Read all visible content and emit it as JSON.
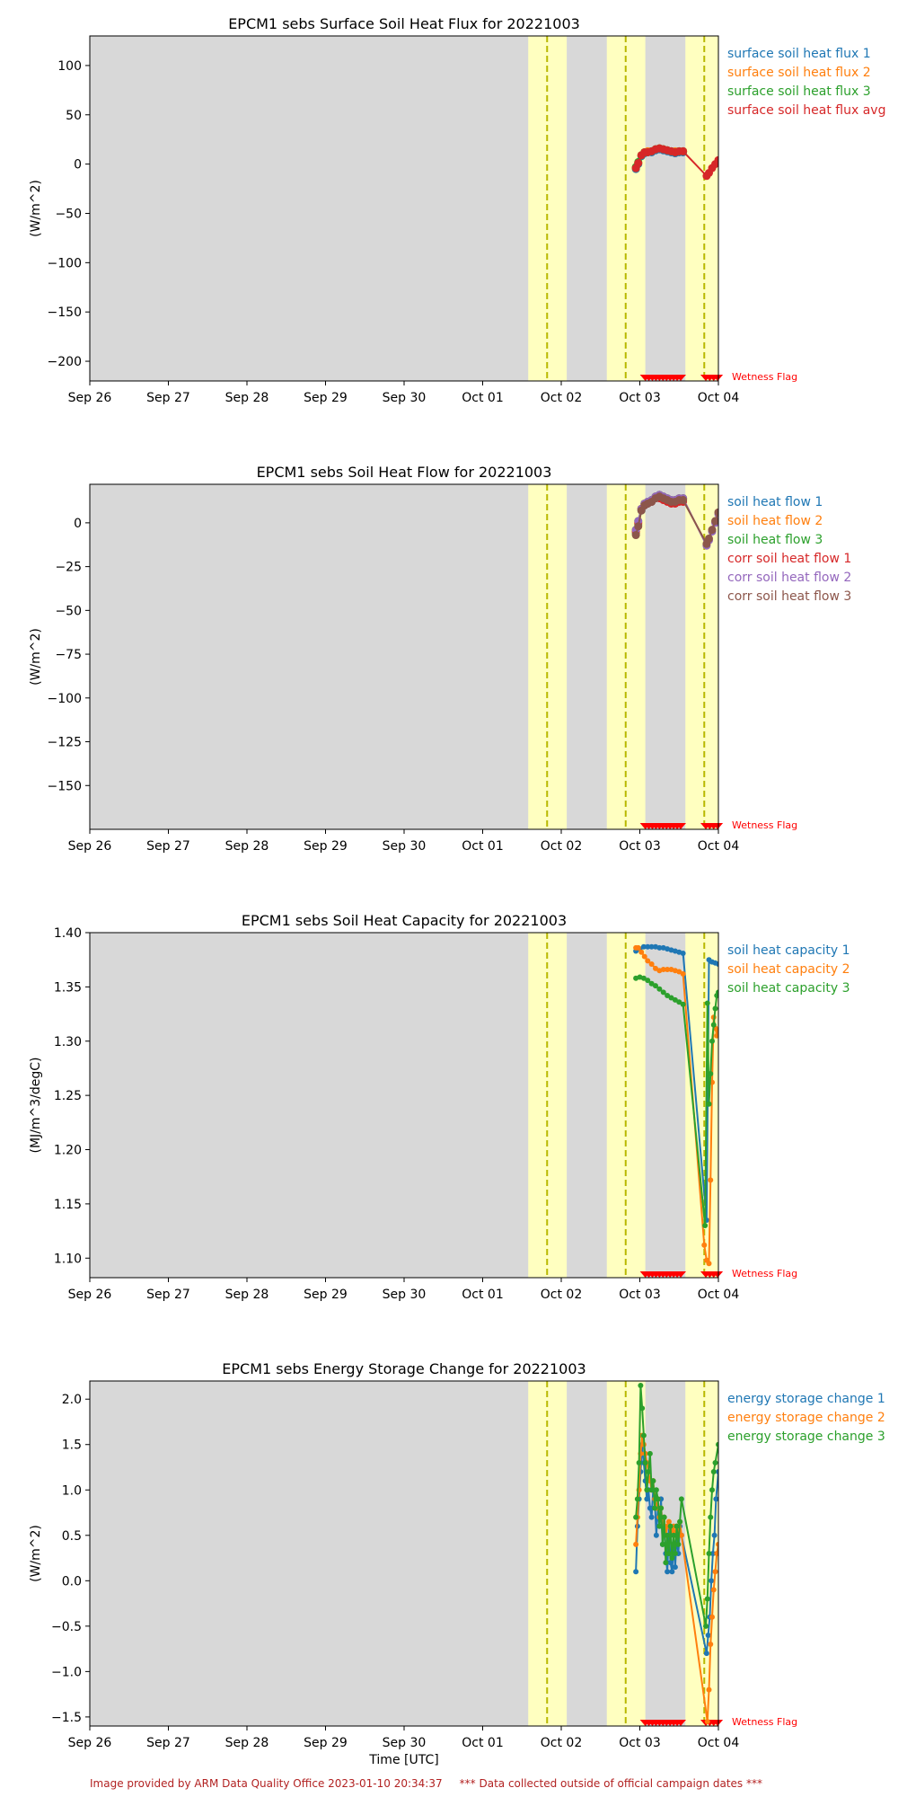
{
  "footer": "Image provided by ARM Data Quality Office 2023-01-10 20:34:37     *** Data collected outside of official campaign dates ***",
  "wetness_label": "Wetness Flag",
  "x_ticks": [
    "Sep 26",
    "Sep 27",
    "Sep 28",
    "Sep 29",
    "Sep 30",
    "Oct 01",
    "Oct 02",
    "Oct 03",
    "Oct 04"
  ],
  "x_range": [
    "2022-09-26",
    "2022-10-04"
  ],
  "colors": {
    "bg": "#d8d8d8",
    "night_band": "#ffffc0",
    "dashed": "#b8b800",
    "blue": "#1f77b4",
    "orange": "#ff7f0e",
    "green": "#2ca02c",
    "red": "#d62728",
    "purple": "#9467bd",
    "brown": "#8c564b",
    "wetness": "#ff0000"
  },
  "yellow_bands_days": [
    [
      5.58,
      6.07
    ],
    [
      6.58,
      7.07
    ],
    [
      7.58,
      8.0
    ]
  ],
  "dashed_lines_days": [
    5.82,
    6.82,
    7.82
  ],
  "chart_data": [
    {
      "type": "line",
      "title": "EPCM1 sebs Surface Soil Heat Flux for 20221003",
      "ylabel": "(W/m^2)",
      "xlabel": "",
      "ylim": [
        -220,
        130
      ],
      "yticks": [
        100,
        50,
        0,
        -50,
        -100,
        -150,
        -200
      ],
      "series": [
        {
          "name": "surface soil heat flux 1",
          "color": "blue",
          "x": [
            6.95,
            6.98,
            7.02,
            7.06,
            7.1,
            7.15,
            7.2,
            7.25,
            7.3,
            7.35,
            7.4,
            7.45,
            7.5,
            7.55
          ],
          "y": [
            -5,
            0,
            8,
            11,
            12,
            12,
            14,
            15,
            14,
            13,
            12,
            11,
            12,
            12
          ]
        },
        {
          "name": "surface soil heat flux 2",
          "color": "orange",
          "x": [
            6.95,
            6.98,
            7.02,
            7.06,
            7.1,
            7.15,
            7.2,
            7.25,
            7.3,
            7.35,
            7.4,
            7.45,
            7.5,
            7.55
          ],
          "y": [
            -4,
            1,
            9,
            12,
            13,
            13,
            15,
            16,
            15,
            14,
            13,
            13,
            13,
            13
          ]
        },
        {
          "name": "surface soil heat flux 3",
          "color": "green",
          "x": [
            6.95,
            6.98,
            7.02,
            7.06,
            7.1,
            7.15,
            7.2,
            7.25,
            7.3,
            7.35,
            7.4,
            7.45,
            7.5,
            7.55
          ],
          "y": [
            -3,
            2,
            9,
            12,
            12,
            13,
            15,
            16,
            15,
            14,
            13,
            12,
            13,
            13
          ]
        },
        {
          "name": "surface soil heat flux avg",
          "color": "red",
          "x": [
            6.95,
            6.98,
            7.02,
            7.06,
            7.1,
            7.15,
            7.2,
            7.25,
            7.3,
            7.35,
            7.4,
            7.45,
            7.5,
            7.55,
            7.85,
            7.88,
            7.92,
            7.96,
            8.0
          ],
          "y": [
            -4,
            1,
            9,
            12,
            12,
            13,
            15,
            16,
            15,
            14,
            13,
            12,
            13,
            13,
            -12,
            -9,
            -4,
            0,
            4
          ]
        }
      ]
    },
    {
      "type": "line",
      "title": "EPCM1 sebs Soil Heat Flow for 20221003",
      "ylabel": "(W/m^2)",
      "xlabel": "",
      "ylim": [
        -175,
        22
      ],
      "yticks": [
        0,
        -25,
        -50,
        -75,
        -100,
        -125,
        -150
      ],
      "series": [
        {
          "name": "soil heat flow 1",
          "color": "blue",
          "x": [
            6.95,
            6.98,
            7.02,
            7.06,
            7.1,
            7.15,
            7.2,
            7.25,
            7.3,
            7.35,
            7.4,
            7.45,
            7.5,
            7.55
          ],
          "y": [
            -6,
            -1,
            7,
            10,
            11,
            12,
            14,
            15,
            14,
            13,
            12,
            12,
            13,
            13
          ]
        },
        {
          "name": "soil heat flow 2",
          "color": "orange",
          "x": [
            6.95,
            6.98,
            7.02,
            7.06,
            7.1,
            7.15,
            7.2,
            7.25,
            7.3,
            7.35,
            7.4,
            7.45,
            7.5,
            7.55
          ],
          "y": [
            -5,
            0,
            8,
            11,
            12,
            13,
            15,
            16,
            15,
            14,
            13,
            13,
            14,
            14
          ]
        },
        {
          "name": "soil heat flow 3",
          "color": "green",
          "x": [
            6.95,
            6.98,
            7.02,
            7.06,
            7.1,
            7.15,
            7.2,
            7.25,
            7.3,
            7.35,
            7.4,
            7.45,
            7.5,
            7.55
          ],
          "y": [
            -4,
            1,
            8,
            11,
            12,
            13,
            15,
            16,
            15,
            14,
            13,
            13,
            14,
            14
          ]
        },
        {
          "name": "corr soil heat flow 1",
          "color": "red",
          "x": [
            6.95,
            6.98,
            7.02,
            7.06,
            7.1,
            7.15,
            7.2,
            7.25,
            7.3,
            7.35,
            7.4,
            7.45,
            7.5,
            7.55
          ],
          "y": [
            -5,
            0,
            8,
            10,
            11,
            12,
            14,
            14,
            13,
            12,
            11,
            11,
            12,
            12
          ]
        },
        {
          "name": "corr soil heat flow 2",
          "color": "purple",
          "x": [
            6.95,
            6.98,
            7.02,
            7.06,
            7.1,
            7.15,
            7.2,
            7.25,
            7.3,
            7.35,
            7.4,
            7.45,
            7.5,
            7.55,
            7.85,
            7.88,
            7.92,
            7.96,
            8.0
          ],
          "y": [
            -4,
            1,
            8,
            11,
            12,
            13,
            15,
            16,
            15,
            14,
            13,
            13,
            14,
            14,
            -13,
            -10,
            -5,
            0,
            5
          ]
        },
        {
          "name": "corr soil heat flow 3",
          "color": "brown",
          "x": [
            6.95,
            6.98,
            7.02,
            7.06,
            7.1,
            7.15,
            7.2,
            7.25,
            7.3,
            7.35,
            7.4,
            7.45,
            7.5,
            7.55,
            7.85,
            7.88,
            7.92,
            7.96,
            8.0
          ],
          "y": [
            -7,
            -2,
            7,
            10,
            11,
            12,
            14,
            15,
            14,
            13,
            12,
            12,
            13,
            13,
            -12,
            -9,
            -4,
            1,
            6
          ]
        }
      ]
    },
    {
      "type": "line",
      "title": "EPCM1 sebs Soil Heat Capacity for 20221003",
      "ylabel": "(MJ/m^3/degC)",
      "xlabel": "",
      "ylim": [
        1.082,
        1.4
      ],
      "yticks": [
        1.4,
        1.35,
        1.3,
        1.25,
        1.2,
        1.15,
        1.1
      ],
      "series": [
        {
          "name": "soil heat capacity 1",
          "color": "blue",
          "x": [
            6.95,
            7.0,
            7.05,
            7.1,
            7.15,
            7.2,
            7.25,
            7.3,
            7.35,
            7.4,
            7.45,
            7.5,
            7.55,
            7.85,
            7.88,
            7.92,
            7.96,
            8.0
          ],
          "y": [
            1.383,
            1.385,
            1.387,
            1.387,
            1.387,
            1.387,
            1.386,
            1.386,
            1.385,
            1.384,
            1.383,
            1.382,
            1.381,
            1.135,
            1.375,
            1.373,
            1.372,
            1.371
          ]
        },
        {
          "name": "soil heat capacity 2",
          "color": "orange",
          "x": [
            6.95,
            6.98,
            7.02,
            7.06,
            7.1,
            7.15,
            7.2,
            7.25,
            7.3,
            7.35,
            7.4,
            7.45,
            7.5,
            7.55,
            7.82,
            7.85,
            7.88,
            7.9,
            7.92,
            7.94,
            7.96,
            7.98,
            8.0
          ],
          "y": [
            1.386,
            1.386,
            1.382,
            1.378,
            1.374,
            1.371,
            1.367,
            1.365,
            1.366,
            1.366,
            1.366,
            1.365,
            1.364,
            1.362,
            1.112,
            1.098,
            1.095,
            1.172,
            1.262,
            1.322,
            1.312,
            1.305,
            1.31
          ]
        },
        {
          "name": "soil heat capacity 3",
          "color": "green",
          "x": [
            6.95,
            7.0,
            7.05,
            7.1,
            7.15,
            7.2,
            7.25,
            7.3,
            7.35,
            7.4,
            7.45,
            7.5,
            7.55,
            7.83,
            7.86,
            7.88,
            7.9,
            7.92,
            7.94,
            7.96,
            7.98,
            8.0
          ],
          "y": [
            1.358,
            1.359,
            1.358,
            1.356,
            1.353,
            1.351,
            1.348,
            1.345,
            1.342,
            1.34,
            1.338,
            1.336,
            1.334,
            1.13,
            1.335,
            1.242,
            1.27,
            1.3,
            1.315,
            1.33,
            1.342,
            1.345
          ]
        }
      ]
    },
    {
      "type": "line",
      "title": "EPCM1 sebs Energy Storage Change for 20221003",
      "ylabel": "(W/m^2)",
      "xlabel": "Time [UTC]",
      "ylim": [
        -1.6,
        2.2
      ],
      "yticks": [
        2.0,
        1.5,
        1.0,
        0.5,
        0.0,
        -0.5,
        -1.0,
        -1.5
      ],
      "series": [
        {
          "name": "energy storage change 1",
          "color": "blue",
          "x": [
            6.95,
            6.97,
            6.99,
            7.01,
            7.03,
            7.05,
            7.07,
            7.09,
            7.11,
            7.13,
            7.15,
            7.17,
            7.19,
            7.21,
            7.23,
            7.25,
            7.27,
            7.29,
            7.31,
            7.33,
            7.35,
            7.37,
            7.39,
            7.41,
            7.43,
            7.45,
            7.47,
            7.49,
            7.51,
            7.53,
            7.85,
            7.87,
            7.89,
            7.91,
            7.93,
            7.95,
            7.97,
            8.0
          ],
          "y": [
            0.1,
            0.6,
            0.9,
            1.2,
            1.5,
            1.3,
            1.1,
            0.9,
            1.0,
            0.8,
            0.7,
            1.0,
            0.9,
            0.5,
            0.8,
            0.6,
            0.9,
            0.4,
            0.7,
            0.3,
            0.1,
            0.6,
            0.2,
            0.1,
            0.4,
            0.15,
            0.5,
            0.3,
            0.6,
            0.5,
            -0.8,
            -0.6,
            -0.4,
            0.0,
            0.3,
            0.5,
            0.9,
            1.2
          ]
        },
        {
          "name": "energy storage change 2",
          "color": "orange",
          "x": [
            6.95,
            6.97,
            6.99,
            7.01,
            7.03,
            7.05,
            7.07,
            7.09,
            7.11,
            7.13,
            7.15,
            7.17,
            7.19,
            7.21,
            7.23,
            7.25,
            7.27,
            7.29,
            7.31,
            7.33,
            7.35,
            7.37,
            7.39,
            7.41,
            7.43,
            7.45,
            7.47,
            7.49,
            7.51,
            7.53,
            7.86,
            7.88,
            7.9,
            7.92,
            7.94,
            7.96,
            7.98,
            8.0
          ],
          "y": [
            0.4,
            0.7,
            1.0,
            1.4,
            1.6,
            1.5,
            1.4,
            1.3,
            1.2,
            1.1,
            1.0,
            1.1,
            0.9,
            0.8,
            0.9,
            0.7,
            0.8,
            0.6,
            0.7,
            0.5,
            0.6,
            0.65,
            0.5,
            0.55,
            0.6,
            0.5,
            0.6,
            0.55,
            0.65,
            0.5,
            -1.55,
            -1.2,
            -0.7,
            -0.4,
            -0.1,
            0.1,
            0.3,
            0.4
          ]
        },
        {
          "name": "energy storage change 3",
          "color": "green",
          "x": [
            6.95,
            6.97,
            6.99,
            7.01,
            7.03,
            7.05,
            7.07,
            7.09,
            7.11,
            7.13,
            7.15,
            7.17,
            7.19,
            7.21,
            7.23,
            7.25,
            7.27,
            7.29,
            7.31,
            7.33,
            7.35,
            7.37,
            7.39,
            7.41,
            7.43,
            7.45,
            7.47,
            7.49,
            7.51,
            7.53,
            7.84,
            7.86,
            7.88,
            7.9,
            7.92,
            7.94,
            7.96,
            8.0
          ],
          "y": [
            0.7,
            0.9,
            1.3,
            2.15,
            1.9,
            1.6,
            1.3,
            1.0,
            1.2,
            1.4,
            1.0,
            1.1,
            0.8,
            1.0,
            0.9,
            0.6,
            0.8,
            0.4,
            0.7,
            0.2,
            0.5,
            0.3,
            0.6,
            0.25,
            0.5,
            0.3,
            0.6,
            0.4,
            0.65,
            0.9,
            -0.5,
            -0.2,
            0.3,
            0.7,
            1.0,
            1.2,
            1.3,
            1.5
          ]
        }
      ]
    }
  ]
}
